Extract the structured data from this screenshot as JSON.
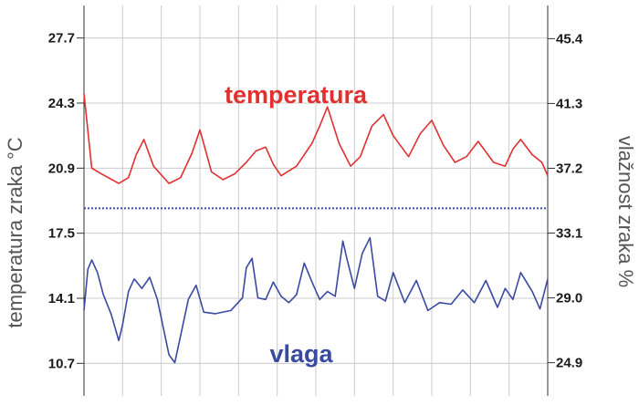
{
  "chart_data": {
    "type": "line",
    "grid": true,
    "y_left": {
      "label": "temperatura zraka °C",
      "ticks": [
        "27.7",
        "24.3",
        "20.9",
        "17.5",
        "14.1",
        "10.7"
      ],
      "ylim": [
        9.0,
        29.4
      ]
    },
    "y_right": {
      "label": "vlažnost zraka %",
      "ticks": [
        "45.4",
        "41.3",
        "37.2",
        "33.1",
        "29.0",
        "24.9"
      ],
      "ylim": [
        22.8,
        47.5
      ]
    },
    "x": {
      "count": 13,
      "range": [
        0,
        12
      ]
    },
    "reference_line": {
      "axis": "left",
      "value": 18.8
    },
    "series": [
      {
        "name": "temperatura",
        "axis": "left",
        "color": "#e03030",
        "x": [
          0,
          0.2,
          0.45,
          0.9,
          1.15,
          1.35,
          1.55,
          1.8,
          2.2,
          2.5,
          2.8,
          3.0,
          3.3,
          3.6,
          3.9,
          4.2,
          4.45,
          4.7,
          4.9,
          5.1,
          5.5,
          5.9,
          6.1,
          6.3,
          6.6,
          6.9,
          7.15,
          7.45,
          7.75,
          8.0,
          8.4,
          8.7,
          9.0,
          9.3,
          9.6,
          9.9,
          10.2,
          10.6,
          10.9,
          11.1,
          11.3,
          11.6,
          11.85,
          12
        ],
        "values": [
          24.8,
          20.9,
          20.6,
          20.1,
          20.4,
          21.6,
          22.4,
          21.0,
          20.1,
          20.4,
          21.7,
          22.9,
          20.7,
          20.3,
          20.6,
          21.2,
          21.8,
          22.0,
          21.1,
          20.5,
          21.0,
          22.2,
          23.1,
          24.1,
          22.2,
          21.0,
          21.5,
          23.1,
          23.7,
          22.6,
          21.5,
          22.7,
          23.4,
          22.1,
          21.2,
          21.5,
          22.3,
          21.2,
          21.0,
          21.9,
          22.4,
          21.6,
          21.2,
          20.5
        ]
      },
      {
        "name": "vlaga",
        "axis": "right",
        "color": "#3a4aa0",
        "x": [
          0,
          0.1,
          0.2,
          0.35,
          0.5,
          0.7,
          0.9,
          1.0,
          1.15,
          1.3,
          1.5,
          1.7,
          1.9,
          2.2,
          2.35,
          2.5,
          2.7,
          2.9,
          3.1,
          3.4,
          3.8,
          4.1,
          4.2,
          4.35,
          4.5,
          4.7,
          4.9,
          5.1,
          5.3,
          5.5,
          5.7,
          5.9,
          6.1,
          6.3,
          6.5,
          6.7,
          6.8,
          7.0,
          7.2,
          7.4,
          7.6,
          7.8,
          8.0,
          8.3,
          8.6,
          8.9,
          9.2,
          9.5,
          9.8,
          10.1,
          10.4,
          10.7,
          10.9,
          11.1,
          11.3,
          11.6,
          11.8,
          12
        ],
        "values": [
          28.2,
          30.8,
          31.4,
          30.6,
          29.2,
          28.0,
          26.3,
          27.3,
          29.4,
          30.2,
          29.6,
          30.3,
          28.9,
          25.4,
          24.9,
          26.6,
          28.9,
          29.8,
          28.1,
          28.0,
          28.2,
          29.0,
          30.9,
          31.5,
          29.0,
          28.9,
          30.0,
          29.1,
          28.7,
          29.2,
          31.2,
          30.0,
          28.9,
          29.4,
          29.1,
          32.6,
          31.5,
          29.6,
          31.8,
          32.8,
          29.1,
          28.8,
          30.6,
          28.7,
          30.1,
          28.2,
          28.7,
          28.6,
          29.5,
          28.7,
          30.1,
          28.4,
          29.6,
          28.9,
          30.6,
          29.4,
          28.3,
          30.2
        ]
      }
    ],
    "annotations": [
      {
        "text": "temperatura",
        "series": "temperatura"
      },
      {
        "text": "vlaga",
        "series": "vlaga"
      }
    ]
  }
}
